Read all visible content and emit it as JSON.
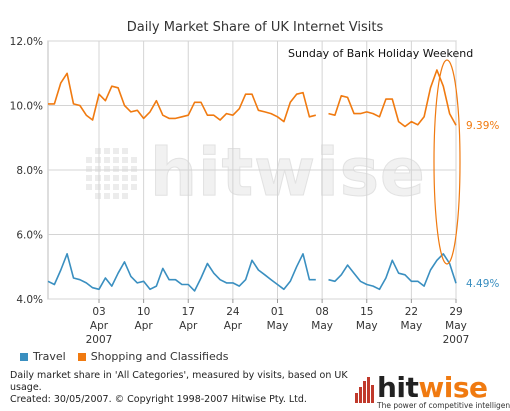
{
  "chart_data": {
    "type": "line",
    "title": "Daily Market Share of UK Internet Visits",
    "annotation": "Sunday of Bank Holiday Weekend",
    "y_ticks": [
      "12.0%",
      "10.0%",
      "8.0%",
      "6.0%",
      "4.0%"
    ],
    "ylim": [
      4.0,
      12.0
    ],
    "x_ticks": [
      {
        "day": "03",
        "month": "Apr",
        "year": "2007",
        "x": 6
      },
      {
        "day": "10",
        "month": "Apr",
        "year": "",
        "x": 13
      },
      {
        "day": "17",
        "month": "Apr",
        "year": "",
        "x": 20
      },
      {
        "day": "24",
        "month": "Apr",
        "year": "",
        "x": 27
      },
      {
        "day": "01",
        "month": "May",
        "year": "",
        "x": 34
      },
      {
        "day": "08",
        "month": "May",
        "year": "",
        "x": 41
      },
      {
        "day": "15",
        "month": "May",
        "year": "",
        "x": 48
      },
      {
        "day": "22",
        "month": "May",
        "year": "",
        "x": 55
      },
      {
        "day": "29",
        "month": "May",
        "year": "2007",
        "x": 62
      }
    ],
    "xlim": [
      -2,
      62
    ],
    "series": [
      {
        "name": "Travel",
        "color": "#3a8fc0",
        "end_label": "4.49%",
        "x": [
          -2,
          -1,
          0,
          1,
          2,
          3,
          4,
          5,
          6,
          7,
          8,
          9,
          10,
          11,
          12,
          13,
          14,
          15,
          16,
          17,
          18,
          19,
          20,
          21,
          22,
          23,
          24,
          25,
          26,
          27,
          28,
          29,
          30,
          31,
          32,
          33,
          34,
          35,
          36,
          37,
          38,
          39,
          40,
          41,
          42,
          43,
          44,
          45,
          46,
          47,
          48,
          49,
          50,
          51,
          52,
          53,
          54,
          55,
          56,
          57,
          58,
          59,
          60,
          61,
          62
        ],
        "values": [
          4.55,
          4.45,
          4.9,
          5.4,
          4.65,
          4.6,
          4.5,
          4.35,
          4.3,
          4.65,
          4.4,
          4.8,
          5.15,
          4.7,
          4.5,
          4.55,
          4.3,
          4.4,
          4.95,
          4.6,
          4.6,
          4.45,
          4.45,
          4.25,
          4.65,
          5.1,
          4.8,
          4.6,
          4.5,
          4.5,
          4.4,
          4.6,
          5.2,
          4.9,
          4.75,
          4.6,
          4.45,
          4.3,
          4.55,
          5.0,
          5.4,
          4.6,
          4.6,
          null,
          4.6,
          4.55,
          4.75,
          5.05,
          4.8,
          4.55,
          4.45,
          4.4,
          4.3,
          4.65,
          5.2,
          4.8,
          4.75,
          4.55,
          4.55,
          4.4,
          4.9,
          5.2,
          5.4,
          5.1,
          4.49
        ]
      },
      {
        "name": "Shopping and Classifieds",
        "color": "#f07a10",
        "end_label": "9.39%",
        "x": [
          -2,
          -1,
          0,
          1,
          2,
          3,
          4,
          5,
          6,
          7,
          8,
          9,
          10,
          11,
          12,
          13,
          14,
          15,
          16,
          17,
          18,
          19,
          20,
          21,
          22,
          23,
          24,
          25,
          26,
          27,
          28,
          29,
          30,
          31,
          32,
          33,
          34,
          35,
          36,
          37,
          38,
          39,
          40,
          41,
          42,
          43,
          44,
          45,
          46,
          47,
          48,
          49,
          50,
          51,
          52,
          53,
          54,
          55,
          56,
          57,
          58,
          59,
          60,
          61,
          62
        ],
        "values": [
          10.05,
          10.05,
          10.7,
          11.0,
          10.05,
          10.0,
          9.7,
          9.55,
          10.35,
          10.15,
          10.6,
          10.55,
          10.0,
          9.8,
          9.85,
          9.6,
          9.8,
          10.15,
          9.7,
          9.6,
          9.6,
          9.65,
          9.7,
          10.1,
          10.1,
          9.7,
          9.7,
          9.55,
          9.75,
          9.7,
          9.9,
          10.35,
          10.35,
          9.85,
          9.8,
          9.75,
          9.65,
          9.5,
          10.1,
          10.35,
          10.4,
          9.65,
          9.7,
          null,
          9.75,
          9.7,
          10.3,
          10.25,
          9.75,
          9.75,
          9.8,
          9.75,
          9.65,
          10.2,
          10.2,
          9.5,
          9.35,
          9.5,
          9.4,
          9.65,
          10.55,
          11.1,
          10.6,
          9.75,
          9.39
        ]
      }
    ]
  },
  "legend": {
    "travel_label": "Travel",
    "shopping_label": "Shopping and Classifieds"
  },
  "footnote": {
    "line1": "Daily market share in 'All Categories', measured by visits, based on UK usage.",
    "line2": "Created: 30/05/2007. © Copyright 1998-2007 Hitwise Pty. Ltd."
  },
  "watermark": "hitwise",
  "logo": {
    "wordmark_prefix": "hit",
    "wordmark_suffix": "wise",
    "tagline": "The power of competitive intelligence"
  }
}
